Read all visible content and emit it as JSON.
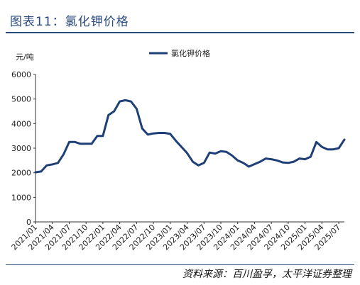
{
  "title": "图表11：氯化钾价格",
  "source": "资料来源：百川盈孚，太平洋证券整理",
  "chart_data": {
    "type": "line",
    "ylabel": "元/吨",
    "ylim": [
      0,
      6000
    ],
    "yticks": [
      0,
      1000,
      2000,
      3000,
      4000,
      5000,
      6000
    ],
    "xlim": [
      "2021/01",
      "2025/08"
    ],
    "xticks": [
      "2021/01",
      "2021/04",
      "2021/07",
      "2021/10",
      "2022/01",
      "2022/04",
      "2022/07",
      "2022/10",
      "2023/01",
      "2023/04",
      "2023/07",
      "2023/10",
      "2024/01",
      "2024/04",
      "2024/07",
      "2024/10",
      "2025/01",
      "2025/04",
      "2025/07"
    ],
    "legend": "top-center",
    "color": "#1f3f77",
    "series": [
      {
        "name": "氯化钾价格",
        "points": [
          [
            "2021/01",
            2020
          ],
          [
            "2021/02",
            2050
          ],
          [
            "2021/03",
            2300
          ],
          [
            "2021/04",
            2340
          ],
          [
            "2021/05",
            2400
          ],
          [
            "2021/06",
            2750
          ],
          [
            "2021/07",
            3250
          ],
          [
            "2021/08",
            3250
          ],
          [
            "2021/09",
            3180
          ],
          [
            "2021/10",
            3180
          ],
          [
            "2021/11",
            3180
          ],
          [
            "2021/12",
            3500
          ],
          [
            "2022/01",
            3500
          ],
          [
            "2022/02",
            4350
          ],
          [
            "2022/03",
            4500
          ],
          [
            "2022/04",
            4900
          ],
          [
            "2022/05",
            4950
          ],
          [
            "2022/06",
            4900
          ],
          [
            "2022/07",
            4600
          ],
          [
            "2022/08",
            3800
          ],
          [
            "2022/09",
            3550
          ],
          [
            "2022/10",
            3600
          ],
          [
            "2022/11",
            3620
          ],
          [
            "2022/12",
            3620
          ],
          [
            "2023/01",
            3580
          ],
          [
            "2023/02",
            3300
          ],
          [
            "2023/03",
            3050
          ],
          [
            "2023/04",
            2800
          ],
          [
            "2023/05",
            2450
          ],
          [
            "2023/06",
            2300
          ],
          [
            "2023/07",
            2400
          ],
          [
            "2023/08",
            2820
          ],
          [
            "2023/09",
            2780
          ],
          [
            "2023/10",
            2880
          ],
          [
            "2023/11",
            2850
          ],
          [
            "2023/12",
            2700
          ],
          [
            "2024/01",
            2500
          ],
          [
            "2024/02",
            2400
          ],
          [
            "2024/03",
            2250
          ],
          [
            "2024/04",
            2350
          ],
          [
            "2024/05",
            2450
          ],
          [
            "2024/06",
            2580
          ],
          [
            "2024/07",
            2550
          ],
          [
            "2024/08",
            2500
          ],
          [
            "2024/09",
            2420
          ],
          [
            "2024/10",
            2400
          ],
          [
            "2024/11",
            2450
          ],
          [
            "2024/12",
            2580
          ],
          [
            "2025/01",
            2550
          ],
          [
            "2025/02",
            2650
          ],
          [
            "2025/03",
            3250
          ],
          [
            "2025/04",
            3050
          ],
          [
            "2025/05",
            2950
          ],
          [
            "2025/06",
            2950
          ],
          [
            "2025/07",
            3000
          ],
          [
            "2025/08",
            3350
          ]
        ]
      }
    ]
  }
}
